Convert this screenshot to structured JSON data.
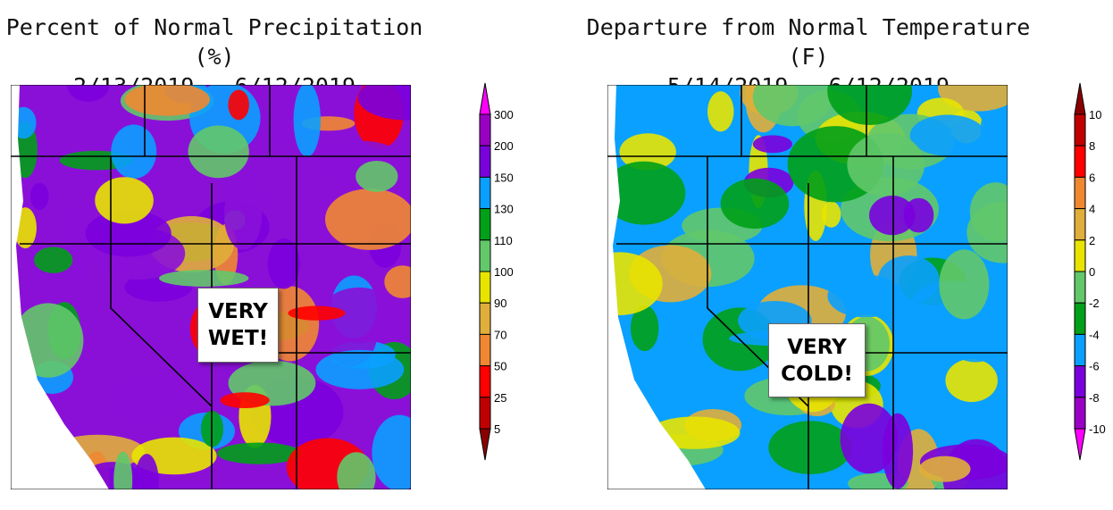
{
  "left": {
    "title_line1": "Percent of Normal Precipitation (%)",
    "title_line2": "2/13/2019 - 6/12/2019",
    "callout": [
      "VERY",
      "WET!"
    ],
    "colorbar": {
      "labels": [
        "300",
        "200",
        "150",
        "130",
        "110",
        "100",
        "90",
        "70",
        "50",
        "25",
        "5"
      ],
      "colors": [
        "#9a00c4",
        "#7a00de",
        "#0aa0ff",
        "#00a018",
        "#62c86a",
        "#e8e400",
        "#e0ae3a",
        "#f08832",
        "#ff0000",
        "#c00000"
      ],
      "top_arrow": "#ff00ff",
      "bottom_arrow": "#8a0000"
    },
    "base_color": "#8a10d8",
    "field_colors": [
      "#8a10d8",
      "#7a00de",
      "#0aa0ff",
      "#00a018",
      "#62c86a",
      "#e8e400",
      "#e0ae3a",
      "#f08832",
      "#ff0000"
    ]
  },
  "right": {
    "title_line1": "Departure from Normal Temperature (F)",
    "title_line2": "5/14/2019 - 6/12/2019",
    "callout": [
      "VERY",
      "COLD!"
    ],
    "colorbar": {
      "labels": [
        "10",
        "8",
        "6",
        "4",
        "2",
        "0",
        "-2",
        "-4",
        "-6",
        "-8",
        "-10"
      ],
      "colors": [
        "#c00000",
        "#ff0000",
        "#f08832",
        "#e0ae3a",
        "#e8e400",
        "#62c86a",
        "#00a018",
        "#0aa0ff",
        "#7a00de",
        "#9a00c4"
      ],
      "top_arrow": "#8a0000",
      "bottom_arrow": "#ff00ff"
    },
    "base_color": "#0aa0ff",
    "field_colors": [
      "#62c86a",
      "#00a018",
      "#0aa0ff",
      "#7a00de",
      "#e8e400",
      "#e0ae3a"
    ]
  }
}
